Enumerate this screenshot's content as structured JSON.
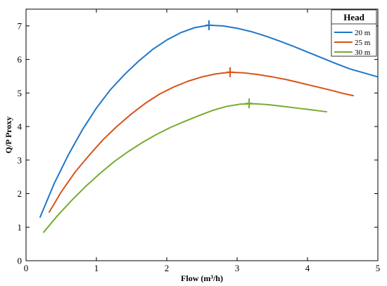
{
  "chart_data": {
    "type": "line",
    "xlabel": "Flow (m³/h)",
    "ylabel": "Q/P Proxy",
    "xlim": [
      0,
      5
    ],
    "ylim": [
      0,
      7.5
    ],
    "x_ticks": [
      0,
      1,
      2,
      3,
      4,
      5
    ],
    "y_ticks": [
      0,
      1,
      2,
      3,
      4,
      5,
      6,
      7
    ],
    "grid": false,
    "legend": {
      "title": "Head",
      "position": "top-right"
    },
    "series": [
      {
        "name": "20 m",
        "color": "#1f77c8",
        "x": [
          0.2,
          0.4,
          0.6,
          0.8,
          1.0,
          1.2,
          1.4,
          1.6,
          1.8,
          2.0,
          2.2,
          2.4,
          2.6,
          2.8,
          3.0,
          3.2,
          3.4,
          3.6,
          3.8,
          4.0,
          4.2,
          4.4,
          4.6,
          4.8,
          5.0
        ],
        "y": [
          1.3,
          2.3,
          3.15,
          3.9,
          4.55,
          5.1,
          5.55,
          5.95,
          6.3,
          6.58,
          6.8,
          6.95,
          7.02,
          7.0,
          6.93,
          6.83,
          6.7,
          6.55,
          6.39,
          6.22,
          6.05,
          5.88,
          5.72,
          5.6,
          5.48
        ],
        "peak": {
          "x": 2.6,
          "y": 7.02
        }
      },
      {
        "name": "25 m",
        "color": "#d95319",
        "x": [
          0.33,
          0.5,
          0.7,
          0.9,
          1.1,
          1.3,
          1.5,
          1.7,
          1.9,
          2.1,
          2.3,
          2.5,
          2.7,
          2.9,
          3.1,
          3.3,
          3.5,
          3.7,
          3.9,
          4.1,
          4.3,
          4.5,
          4.65
        ],
        "y": [
          1.45,
          2.05,
          2.65,
          3.15,
          3.62,
          4.02,
          4.38,
          4.7,
          4.97,
          5.18,
          5.35,
          5.48,
          5.57,
          5.62,
          5.6,
          5.55,
          5.48,
          5.4,
          5.3,
          5.2,
          5.1,
          4.99,
          4.92
        ],
        "peak": {
          "x": 2.9,
          "y": 5.62
        }
      },
      {
        "name": "30 m",
        "color": "#77ac30",
        "x": [
          0.25,
          0.45,
          0.65,
          0.85,
          1.05,
          1.25,
          1.45,
          1.65,
          1.85,
          2.05,
          2.25,
          2.45,
          2.65,
          2.85,
          3.05,
          3.25,
          3.45,
          3.65,
          3.85,
          4.05,
          4.27
        ],
        "y": [
          0.85,
          1.35,
          1.8,
          2.22,
          2.6,
          2.95,
          3.25,
          3.52,
          3.76,
          3.97,
          4.15,
          4.32,
          4.48,
          4.6,
          4.67,
          4.68,
          4.65,
          4.6,
          4.55,
          4.5,
          4.44
        ],
        "peak": {
          "x": 3.17,
          "y": 4.69
        }
      }
    ]
  }
}
